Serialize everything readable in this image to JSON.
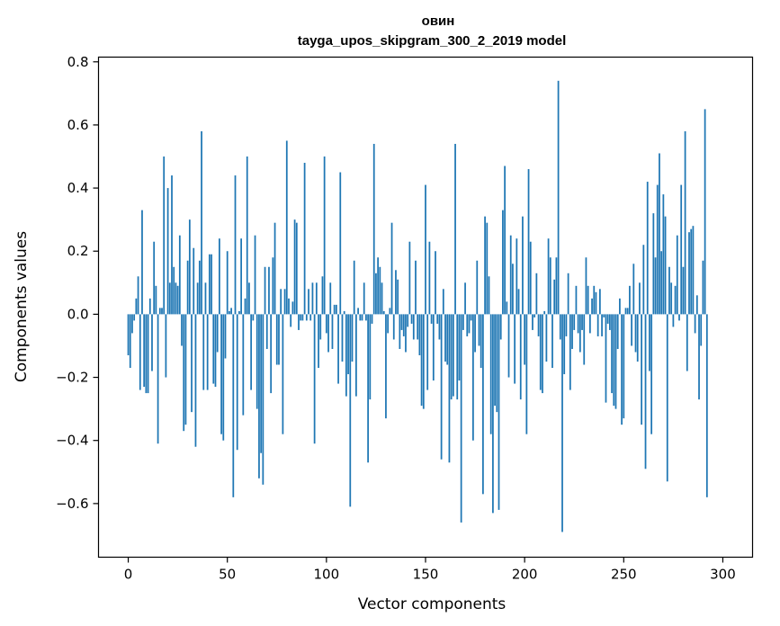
{
  "chart_data": {
    "type": "bar",
    "title": "овин",
    "subtitle": "tayga_upos_skipgram_300_2_2019 model",
    "xlabel": "Vector components",
    "ylabel": "Components values",
    "xlim": [
      -15,
      315
    ],
    "ylim": [
      -0.77,
      0.815
    ],
    "xticks": [
      0,
      50,
      100,
      150,
      200,
      250,
      300
    ],
    "yticks": [
      0.8,
      0.6,
      0.4,
      0.2,
      0.0,
      -0.2,
      -0.4,
      -0.6
    ],
    "ytick_labels": [
      "0.8",
      "0.6",
      "0.4",
      "0.2",
      "0.0",
      "−0.2",
      "−0.4",
      "−0.6"
    ],
    "bar_color": "#1f77b4",
    "grid": false,
    "legend": "none",
    "values": [
      -0.13,
      -0.17,
      -0.06,
      -0.02,
      0.05,
      0.12,
      -0.24,
      0.33,
      -0.23,
      -0.25,
      -0.25,
      0.05,
      -0.18,
      0.23,
      0.09,
      -0.41,
      0.02,
      0.02,
      0.5,
      -0.2,
      0.4,
      0.1,
      0.44,
      0.15,
      0.1,
      0.09,
      0.25,
      -0.1,
      -0.37,
      -0.35,
      0.17,
      0.3,
      -0.31,
      0.21,
      -0.42,
      0.1,
      0.17,
      0.58,
      -0.24,
      0.1,
      -0.24,
      0.19,
      0.19,
      -0.22,
      -0.23,
      -0.12,
      0.24,
      -0.38,
      -0.4,
      -0.14,
      0.2,
      0.01,
      0.02,
      -0.58,
      0.44,
      -0.43,
      0.01,
      0.24,
      -0.32,
      0.05,
      0.5,
      0.1,
      -0.24,
      -0.02,
      0.25,
      -0.3,
      -0.52,
      -0.44,
      -0.54,
      0.15,
      -0.11,
      0.15,
      -0.25,
      0.18,
      0.29,
      -0.16,
      -0.16,
      0.08,
      -0.38,
      0.08,
      0.55,
      0.05,
      -0.04,
      0.04,
      0.3,
      0.29,
      -0.05,
      -0.02,
      -0.02,
      0.48,
      -0.02,
      0.08,
      -0.02,
      0.1,
      -0.41,
      0.1,
      -0.17,
      -0.08,
      0.12,
      0.5,
      -0.06,
      -0.12,
      0.1,
      -0.11,
      0.03,
      0.03,
      -0.22,
      0.45,
      -0.15,
      0.01,
      -0.26,
      -0.19,
      -0.61,
      -0.15,
      0.17,
      -0.26,
      0.02,
      -0.02,
      -0.02,
      0.1,
      -0.02,
      -0.47,
      -0.27,
      -0.03,
      0.54,
      0.13,
      0.18,
      0.15,
      0.1,
      0.01,
      -0.33,
      -0.06,
      0.02,
      0.29,
      -0.08,
      0.14,
      0.11,
      -0.11,
      -0.05,
      -0.07,
      -0.12,
      -0.04,
      0.23,
      -0.03,
      -0.08,
      0.17,
      -0.08,
      -0.13,
      -0.29,
      -0.3,
      0.41,
      -0.24,
      0.23,
      -0.03,
      -0.21,
      0.2,
      -0.03,
      -0.08,
      -0.46,
      0.08,
      -0.15,
      -0.16,
      -0.47,
      -0.27,
      -0.26,
      0.54,
      -0.27,
      -0.21,
      -0.66,
      -0.05,
      0.1,
      -0.07,
      -0.06,
      -0.02,
      -0.4,
      -0.12,
      0.17,
      -0.1,
      -0.17,
      -0.57,
      0.31,
      0.29,
      0.12,
      -0.38,
      -0.63,
      -0.29,
      -0.31,
      -0.62,
      -0.08,
      0.33,
      0.47,
      0.04,
      -0.2,
      0.25,
      0.16,
      -0.22,
      0.24,
      0.08,
      -0.27,
      0.31,
      -0.16,
      -0.38,
      0.46,
      0.23,
      -0.05,
      -0.01,
      0.13,
      -0.07,
      -0.24,
      -0.25,
      0.01,
      -0.15,
      0.24,
      0.18,
      -0.17,
      0.11,
      0.18,
      0.74,
      -0.08,
      -0.69,
      -0.19,
      -0.07,
      0.13,
      -0.24,
      -0.11,
      -0.05,
      0.09,
      -0.06,
      -0.12,
      -0.05,
      -0.16,
      0.18,
      0.09,
      -0.06,
      0.05,
      0.09,
      0.07,
      -0.07,
      0.08,
      -0.07,
      -0.01,
      -0.28,
      -0.03,
      -0.05,
      -0.25,
      -0.29,
      -0.3,
      -0.11,
      0.05,
      -0.35,
      -0.33,
      0.02,
      0.02,
      0.09,
      -0.1,
      0.16,
      -0.12,
      -0.15,
      0.1,
      -0.35,
      0.22,
      -0.49,
      0.42,
      -0.18,
      -0.38,
      0.32,
      0.18,
      0.41,
      0.51,
      0.2,
      0.38,
      0.31,
      -0.53,
      0.15,
      0.1,
      -0.04,
      0.09,
      0.25,
      -0.02,
      0.41,
      0.15,
      0.58,
      -0.18,
      0.26,
      0.27,
      0.28,
      -0.06,
      0.06,
      -0.27,
      -0.1,
      0.17,
      0.65,
      -0.58
    ]
  }
}
